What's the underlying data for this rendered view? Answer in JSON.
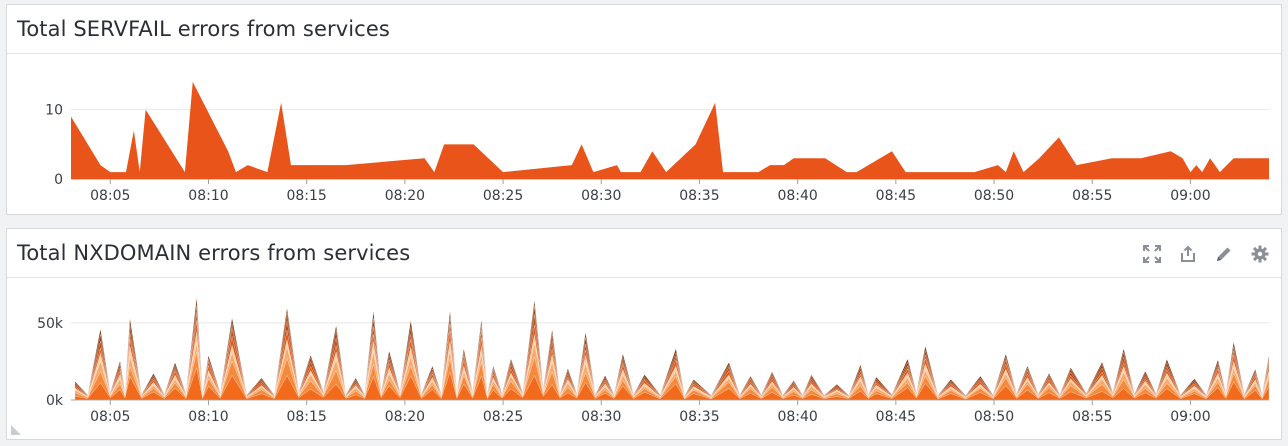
{
  "panels": [
    {
      "title": "Total SERVFAIL errors from services",
      "chart_data": {
        "type": "area",
        "title": "Total SERVFAIL errors from services",
        "xlabel": "",
        "ylabel": "",
        "x_ticks": [
          "08:05",
          "08:10",
          "08:15",
          "08:20",
          "08:25",
          "08:30",
          "08:35",
          "08:40",
          "08:45",
          "08:50",
          "08:55",
          "09:00"
        ],
        "y_ticks": [
          "0",
          "10"
        ],
        "ylim": [
          0,
          16
        ],
        "grid": true,
        "legend": "none",
        "series": [
          {
            "color": "#e8541a",
            "points": [
              [
                0.0,
                9
              ],
              [
                1.5,
                2
              ],
              [
                2.0,
                1
              ],
              [
                2.8,
                1
              ],
              [
                3.2,
                7
              ],
              [
                3.5,
                1
              ],
              [
                3.8,
                10
              ],
              [
                5.8,
                1
              ],
              [
                6.2,
                14
              ],
              [
                8.0,
                4
              ],
              [
                8.4,
                1
              ],
              [
                9.0,
                2
              ],
              [
                10.0,
                1
              ],
              [
                10.7,
                11
              ],
              [
                11.2,
                2
              ],
              [
                14.0,
                2
              ],
              [
                18.0,
                3
              ],
              [
                18.5,
                1
              ],
              [
                19.0,
                5
              ],
              [
                20.5,
                5
              ],
              [
                22.0,
                1
              ],
              [
                25.5,
                2
              ],
              [
                26.0,
                5
              ],
              [
                26.6,
                1
              ],
              [
                27.8,
                2
              ],
              [
                28.0,
                1
              ],
              [
                29.0,
                1
              ],
              [
                29.6,
                4
              ],
              [
                30.3,
                1
              ],
              [
                31.8,
                5
              ],
              [
                32.8,
                11
              ],
              [
                33.2,
                1
              ],
              [
                33.8,
                1
              ],
              [
                34.5,
                1
              ],
              [
                35.0,
                1
              ],
              [
                35.6,
                2
              ],
              [
                36.3,
                2
              ],
              [
                36.8,
                3
              ],
              [
                38.4,
                3
              ],
              [
                39.5,
                1
              ],
              [
                40.0,
                1
              ],
              [
                41.8,
                4
              ],
              [
                42.5,
                1
              ],
              [
                46.0,
                1
              ],
              [
                47.2,
                2
              ],
              [
                47.6,
                1
              ],
              [
                48.0,
                4
              ],
              [
                48.5,
                1
              ],
              [
                49.3,
                3
              ],
              [
                50.3,
                6
              ],
              [
                51.2,
                2
              ],
              [
                53.0,
                3
              ],
              [
                54.5,
                3
              ],
              [
                56.0,
                4
              ],
              [
                56.6,
                3
              ],
              [
                57.0,
                1
              ],
              [
                57.3,
                2
              ],
              [
                57.6,
                1
              ],
              [
                58.0,
                3
              ],
              [
                58.5,
                1
              ],
              [
                59.2,
                3
              ],
              [
                61.0,
                3
              ]
            ]
          }
        ]
      }
    },
    {
      "title": "Total NXDOMAIN errors from services",
      "chart_data": {
        "type": "area",
        "stacked": true,
        "title": "Total NXDOMAIN errors from services",
        "xlabel": "",
        "ylabel": "",
        "x_ticks": [
          "08:05",
          "08:10",
          "08:15",
          "08:20",
          "08:25",
          "08:30",
          "08:35",
          "08:40",
          "08:45",
          "08:50",
          "08:55",
          "09:00"
        ],
        "y_ticks": [
          "0k",
          "50k"
        ],
        "ylim": [
          0,
          70000
        ],
        "grid": true,
        "legend": "none",
        "peaks": [
          [
            0.2,
            12000
          ],
          [
            1.5,
            45000
          ],
          [
            2.5,
            24000
          ],
          [
            3.0,
            50000
          ],
          [
            4.2,
            16000
          ],
          [
            5.3,
            22000
          ],
          [
            6.4,
            60000
          ],
          [
            7.0,
            26000
          ],
          [
            8.2,
            48000
          ],
          [
            9.7,
            13000
          ],
          [
            11.0,
            56000
          ],
          [
            12.2,
            28000
          ],
          [
            13.5,
            48000
          ],
          [
            14.5,
            14000
          ],
          [
            15.4,
            55000
          ],
          [
            16.2,
            30000
          ],
          [
            17.3,
            48000
          ],
          [
            18.4,
            20000
          ],
          [
            19.3,
            52000
          ],
          [
            20.0,
            30000
          ],
          [
            20.9,
            47000
          ],
          [
            21.5,
            20000
          ],
          [
            22.4,
            25000
          ],
          [
            23.6,
            62000
          ],
          [
            24.5,
            45000
          ],
          [
            25.3,
            20000
          ],
          [
            26.2,
            42000
          ],
          [
            27.2,
            15000
          ],
          [
            28.1,
            28000
          ],
          [
            29.2,
            15000
          ],
          [
            30.8,
            30000
          ],
          [
            31.7,
            12000
          ],
          [
            33.5,
            22000
          ],
          [
            34.6,
            14000
          ],
          [
            35.7,
            17000
          ],
          [
            36.8,
            12000
          ],
          [
            37.7,
            16000
          ],
          [
            39.0,
            10000
          ],
          [
            40.2,
            22000
          ],
          [
            41.0,
            14000
          ],
          [
            42.6,
            25000
          ],
          [
            43.5,
            32000
          ],
          [
            44.8,
            12000
          ],
          [
            46.3,
            14000
          ],
          [
            47.6,
            27000
          ],
          [
            48.7,
            20000
          ],
          [
            49.8,
            16000
          ],
          [
            50.9,
            20000
          ],
          [
            52.5,
            24000
          ],
          [
            53.6,
            33000
          ],
          [
            54.7,
            18000
          ],
          [
            55.8,
            25000
          ],
          [
            57.2,
            13000
          ],
          [
            58.4,
            24000
          ],
          [
            59.2,
            34000
          ],
          [
            60.3,
            18000
          ],
          [
            61.0,
            26000
          ]
        ],
        "series_colors": [
          "#f26b1d",
          "#f58a3c",
          "#f9a96a",
          "#fcd0ab",
          "#e05a18",
          "#c24b10",
          "#9c3a0a",
          "#7a2c06"
        ]
      }
    }
  ],
  "tools": [
    {
      "icon": "fullscreen-icon",
      "glyph": "⤢"
    },
    {
      "icon": "share-icon",
      "glyph": "⇪"
    },
    {
      "icon": "edit-pencil-icon",
      "glyph": "✎"
    },
    {
      "icon": "gear-icon",
      "glyph": "⚙"
    }
  ]
}
